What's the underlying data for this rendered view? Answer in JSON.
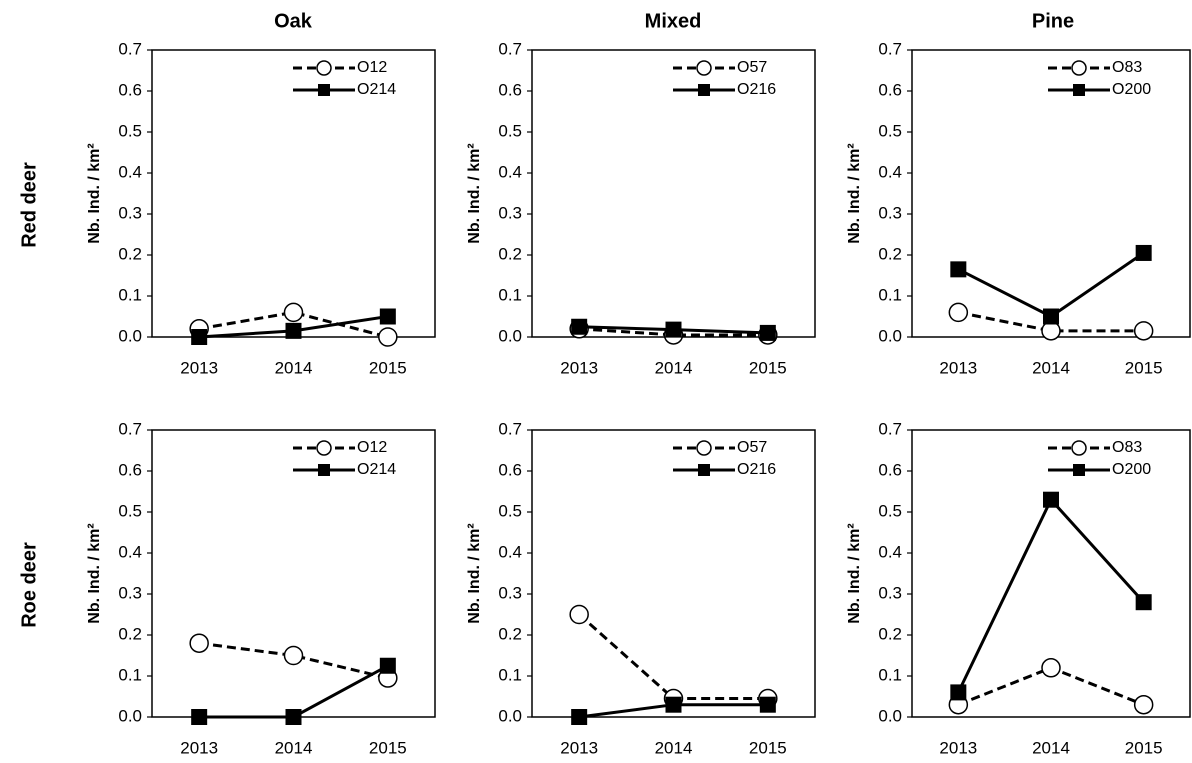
{
  "column_titles": [
    "Oak",
    "Mixed",
    "Pine"
  ],
  "row_labels": [
    "Red deer",
    "Roe deer"
  ],
  "chart_data": [
    {
      "type": "line",
      "ylabel": "Nb. Ind. / km²",
      "categories": [
        "2013",
        "2014",
        "2015"
      ],
      "ylim": [
        0,
        0.7
      ],
      "yticks": [
        {
          "value": 0,
          "label": "0.0"
        },
        0.1,
        0.2,
        0.3,
        0.4,
        0.5,
        0.6,
        0.7
      ],
      "legend": "upper right",
      "series": [
        {
          "name": "O12",
          "color": "#000000",
          "line_style": "dashed",
          "marker": "circle",
          "values": [
            0.02,
            0.06,
            0.0
          ]
        },
        {
          "name": "O214",
          "color": "#000000",
          "line_style": "solid",
          "marker": "square",
          "values": [
            0.0,
            0.015,
            0.05
          ]
        }
      ]
    },
    {
      "type": "line",
      "ylabel": "Nb. Ind. / km²",
      "categories": [
        "2013",
        "2014",
        "2015"
      ],
      "ylim": [
        0,
        0.7
      ],
      "yticks": [
        {
          "value": 0,
          "label": "0.0"
        },
        0.1,
        0.2,
        0.3,
        0.4,
        0.5,
        0.6,
        0.7
      ],
      "legend": "upper right",
      "series": [
        {
          "name": "O57",
          "color": "#000000",
          "line_style": "dashed",
          "marker": "circle",
          "values": [
            0.02,
            0.005,
            0.005
          ]
        },
        {
          "name": "O216",
          "color": "#000000",
          "line_style": "solid",
          "marker": "square",
          "values": [
            0.025,
            0.018,
            0.01
          ]
        }
      ]
    },
    {
      "type": "line",
      "ylabel": "Nb. Ind. / km²",
      "categories": [
        "2013",
        "2014",
        "2015"
      ],
      "ylim": [
        0,
        0.7
      ],
      "yticks": [
        {
          "value": 0,
          "label": "0.0"
        },
        0.1,
        0.2,
        0.3,
        0.4,
        0.5,
        0.6,
        0.7
      ],
      "legend": "upper right",
      "series": [
        {
          "name": "O83",
          "color": "#000000",
          "line_style": "dashed",
          "marker": "circle",
          "values": [
            0.06,
            0.015,
            0.015
          ]
        },
        {
          "name": "O200",
          "color": "#000000",
          "line_style": "solid",
          "marker": "square",
          "values": [
            0.165,
            0.05,
            0.205
          ]
        }
      ]
    },
    {
      "type": "line",
      "ylabel": "Nb. Ind. / km²",
      "categories": [
        "2013",
        "2014",
        "2015"
      ],
      "ylim": [
        0,
        0.7
      ],
      "yticks": [
        {
          "value": 0,
          "label": "0.0"
        },
        0.1,
        0.2,
        0.3,
        0.4,
        0.5,
        0.6,
        0.7
      ],
      "legend": "upper right",
      "series": [
        {
          "name": "O12",
          "color": "#000000",
          "line_style": "dashed",
          "marker": "circle",
          "values": [
            0.18,
            0.15,
            0.095
          ]
        },
        {
          "name": "O214",
          "color": "#000000",
          "line_style": "solid",
          "marker": "square",
          "values": [
            0.0,
            0.0,
            0.125
          ]
        }
      ]
    },
    {
      "type": "line",
      "ylabel": "Nb. Ind. / km²",
      "categories": [
        "2013",
        "2014",
        "2015"
      ],
      "ylim": [
        0,
        0.7
      ],
      "yticks": [
        {
          "value": 0,
          "label": "0.0"
        },
        0.1,
        0.2,
        0.3,
        0.4,
        0.5,
        0.6,
        0.7
      ],
      "legend": "upper right",
      "series": [
        {
          "name": "O57",
          "color": "#000000",
          "line_style": "dashed",
          "marker": "circle",
          "values": [
            0.25,
            0.045,
            0.045
          ]
        },
        {
          "name": "O216",
          "color": "#000000",
          "line_style": "solid",
          "marker": "square",
          "values": [
            0.0,
            0.03,
            0.03
          ]
        }
      ]
    },
    {
      "type": "line",
      "ylabel": "Nb. Ind. / km²",
      "categories": [
        "2013",
        "2014",
        "2015"
      ],
      "ylim": [
        0,
        0.7
      ],
      "yticks": [
        {
          "value": 0,
          "label": "0.0"
        },
        0.1,
        0.2,
        0.3,
        0.4,
        0.5,
        0.6,
        0.7
      ],
      "legend": "upper right",
      "series": [
        {
          "name": "O83",
          "color": "#000000",
          "line_style": "dashed",
          "marker": "circle",
          "values": [
            0.03,
            0.12,
            0.03
          ]
        },
        {
          "name": "O200",
          "color": "#000000",
          "line_style": "solid",
          "marker": "square",
          "values": [
            0.06,
            0.53,
            0.28
          ]
        }
      ]
    }
  ]
}
